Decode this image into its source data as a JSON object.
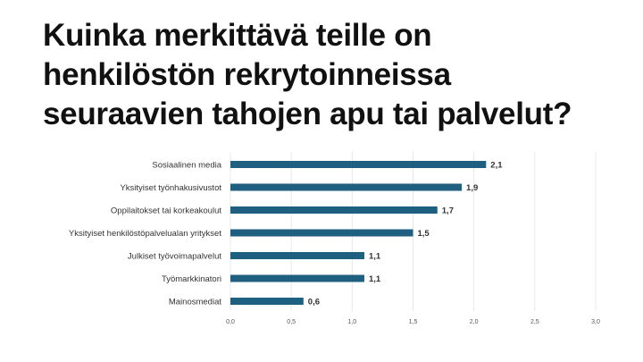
{
  "slide": {
    "title_lines": [
      "Kuinka merkittävä teille on",
      "henkilöstön rekrytoinneissa",
      "seuraavien tahojen apu tai palvelut?"
    ]
  },
  "chart_data": {
    "type": "bar",
    "orientation": "horizontal",
    "categories": [
      "Sosiaalinen media",
      "Yksityiset työnhakusivustot",
      "Oppilaitokset tai korkeakoulut",
      "Yksityiset henkilöstöpalvelualan yritykset",
      "Julkiset työvoimapalvelut",
      "Työmarkkinatori",
      "Mainosmediat"
    ],
    "values": [
      2.1,
      1.9,
      1.7,
      1.5,
      1.1,
      1.1,
      0.6
    ],
    "value_labels": [
      "2,1",
      "1,9",
      "1,7",
      "1,5",
      "1,1",
      "1,1",
      "0,6"
    ],
    "xlim": [
      0,
      3
    ],
    "x_ticks": [
      0,
      0.5,
      1,
      1.5,
      2,
      2.5,
      3
    ],
    "x_tick_labels": [
      "0,0",
      "0,5",
      "1,0",
      "1,5",
      "2,0",
      "2,5",
      "3,0"
    ],
    "grid": true,
    "legend": "none",
    "bar_color": "#1F5F80",
    "grid_color": "#E3E3E3",
    "title": "",
    "xlabel": "",
    "ylabel": ""
  }
}
